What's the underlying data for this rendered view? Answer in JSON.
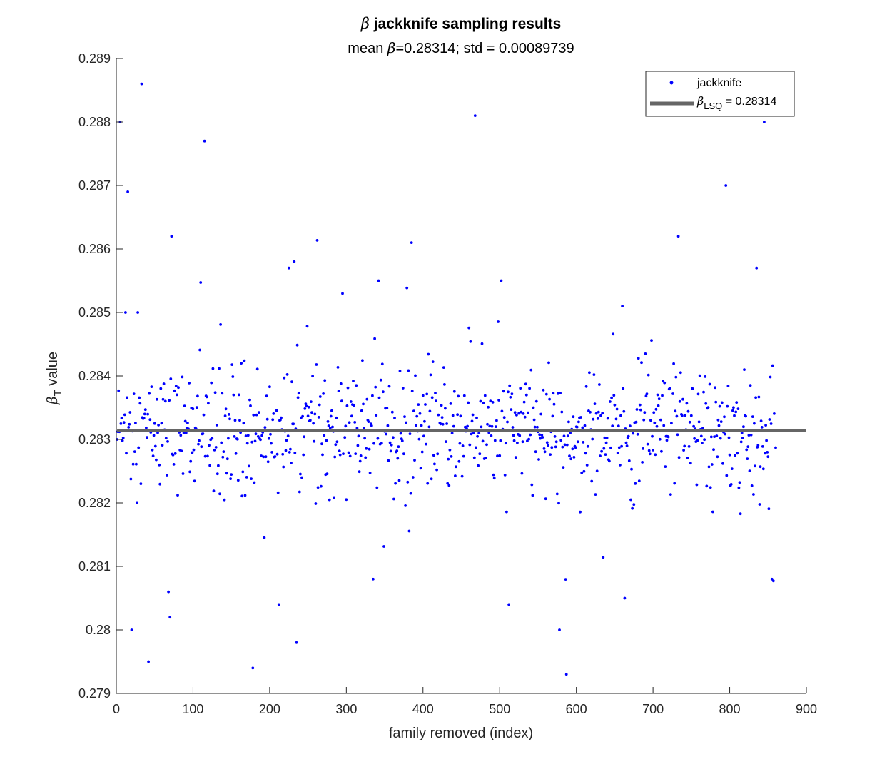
{
  "chart_data": {
    "type": "scatter",
    "title": "β jackknife sampling results",
    "title_symbol": "β",
    "title_rest": " jackknife sampling results",
    "subtitle_prefix": "mean ",
    "subtitle_symbol": "β",
    "subtitle_rest": "=0.28314; std = 0.00089739",
    "xlabel": "family removed (index)",
    "ylabel_symbol": "β",
    "ylabel_sub": "T",
    "ylabel_rest": " value",
    "xlim": [
      0,
      900
    ],
    "ylim": [
      0.279,
      0.289
    ],
    "xticks": [
      0,
      100,
      200,
      300,
      400,
      500,
      600,
      700,
      800,
      900
    ],
    "xtick_labels": [
      "0",
      "100",
      "200",
      "300",
      "400",
      "500",
      "600",
      "700",
      "800",
      "900"
    ],
    "yticks": [
      0.279,
      0.28,
      0.281,
      0.282,
      0.283,
      0.284,
      0.285,
      0.286,
      0.287,
      0.288,
      0.289
    ],
    "ytick_labels": [
      "0.279",
      "0.28",
      "0.281",
      "0.282",
      "0.283",
      "0.284",
      "0.285",
      "0.286",
      "0.287",
      "0.288",
      "0.289"
    ],
    "grid": false,
    "legend_position": "top-right",
    "colors": {
      "points": "#0000ff",
      "lsq_line": "#666666"
    },
    "reference_line": {
      "name_symbol": "β",
      "name_sub": "LSQ",
      "name_rest": " = 0.28314",
      "y": 0.28314
    },
    "series": [
      {
        "name": "jackknife",
        "n_points": 860,
        "notable_points": [
          {
            "x": 5,
            "y": 0.288
          },
          {
            "x": 12,
            "y": 0.285
          },
          {
            "x": 15,
            "y": 0.2869
          },
          {
            "x": 28,
            "y": 0.285
          },
          {
            "x": 33,
            "y": 0.2886
          },
          {
            "x": 42,
            "y": 0.2795
          },
          {
            "x": 20,
            "y": 0.28
          },
          {
            "x": 68,
            "y": 0.2806
          },
          {
            "x": 70,
            "y": 0.2802
          },
          {
            "x": 72,
            "y": 0.2862
          },
          {
            "x": 115,
            "y": 0.2877
          },
          {
            "x": 178,
            "y": 0.2794
          },
          {
            "x": 212,
            "y": 0.2804
          },
          {
            "x": 225,
            "y": 0.2857
          },
          {
            "x": 232,
            "y": 0.2858
          },
          {
            "x": 235,
            "y": 0.2798
          },
          {
            "x": 335,
            "y": 0.2808
          },
          {
            "x": 342,
            "y": 0.2855
          },
          {
            "x": 385,
            "y": 0.2861
          },
          {
            "x": 468,
            "y": 0.2881
          },
          {
            "x": 502,
            "y": 0.2855
          },
          {
            "x": 512,
            "y": 0.2804
          },
          {
            "x": 578,
            "y": 0.28
          },
          {
            "x": 587,
            "y": 0.2793
          },
          {
            "x": 660,
            "y": 0.2851
          },
          {
            "x": 663,
            "y": 0.2805
          },
          {
            "x": 733,
            "y": 0.2862
          },
          {
            "x": 795,
            "y": 0.287
          },
          {
            "x": 835,
            "y": 0.2857
          },
          {
            "x": 845,
            "y": 0.288
          },
          {
            "x": 855,
            "y": 0.2808
          }
        ]
      }
    ]
  }
}
